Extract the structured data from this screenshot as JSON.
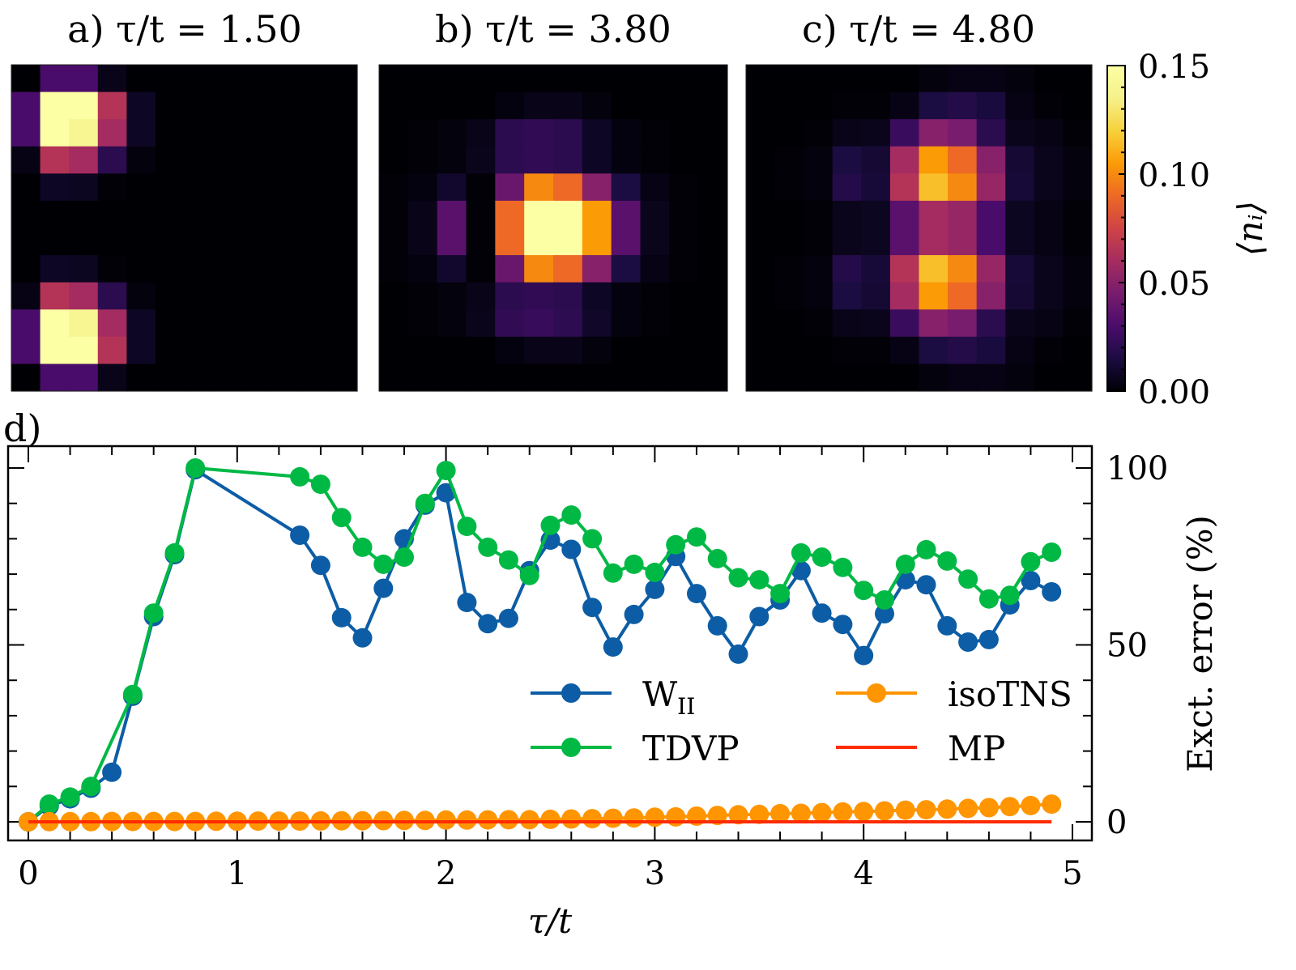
{
  "chart_data": [
    {
      "type": "heatmap",
      "panel": "a",
      "title": "a) τ/t = 1.50",
      "colormap": "inferno",
      "vmin": 0.0,
      "vmax": 0.15,
      "rows": 12,
      "cols": 12,
      "values": [
        [
          0,
          0.03,
          0.03,
          0.005,
          0,
          0,
          0,
          0,
          0,
          0,
          0,
          0
        ],
        [
          0.03,
          0.15,
          0.15,
          0.065,
          0.008,
          0,
          0,
          0,
          0,
          0,
          0,
          0
        ],
        [
          0.03,
          0.15,
          0.14,
          0.06,
          0.008,
          0,
          0,
          0,
          0,
          0,
          0,
          0
        ],
        [
          0.004,
          0.065,
          0.06,
          0.02,
          0.002,
          0,
          0,
          0,
          0,
          0,
          0,
          0
        ],
        [
          0,
          0.008,
          0.007,
          0.001,
          0,
          0,
          0,
          0,
          0,
          0,
          0,
          0
        ],
        [
          0,
          0,
          0,
          0,
          0,
          0,
          0,
          0,
          0,
          0,
          0,
          0
        ],
        [
          0,
          0,
          0,
          0,
          0,
          0,
          0,
          0,
          0,
          0,
          0,
          0
        ],
        [
          0,
          0.008,
          0.007,
          0.001,
          0,
          0,
          0,
          0,
          0,
          0,
          0,
          0
        ],
        [
          0.004,
          0.065,
          0.06,
          0.02,
          0.002,
          0,
          0,
          0,
          0,
          0,
          0,
          0
        ],
        [
          0.03,
          0.15,
          0.14,
          0.06,
          0.008,
          0,
          0,
          0,
          0,
          0,
          0,
          0
        ],
        [
          0.03,
          0.15,
          0.15,
          0.065,
          0.008,
          0,
          0,
          0,
          0,
          0,
          0,
          0
        ],
        [
          0,
          0.03,
          0.03,
          0.005,
          0,
          0,
          0,
          0,
          0,
          0,
          0,
          0
        ]
      ]
    },
    {
      "type": "heatmap",
      "panel": "b",
      "title": "b) τ/t = 3.80",
      "colormap": "inferno",
      "vmin": 0.0,
      "vmax": 0.15,
      "rows": 12,
      "cols": 12,
      "values": [
        [
          0,
          0,
          0,
          0,
          0,
          0,
          0,
          0,
          0,
          0,
          0,
          0
        ],
        [
          0,
          0,
          0,
          0,
          0.003,
          0.005,
          0.005,
          0.002,
          0,
          0,
          0,
          0
        ],
        [
          0,
          0.001,
          0.002,
          0.005,
          0.02,
          0.022,
          0.02,
          0.008,
          0.003,
          0.001,
          0,
          0
        ],
        [
          0,
          0.001,
          0.002,
          0.006,
          0.02,
          0.022,
          0.02,
          0.008,
          0.003,
          0.001,
          0,
          0
        ],
        [
          0.001,
          0.003,
          0.01,
          0.001,
          0.04,
          0.1,
          0.09,
          0.05,
          0.015,
          0.004,
          0.001,
          0
        ],
        [
          0.001,
          0.005,
          0.035,
          0.001,
          0.09,
          0.15,
          0.15,
          0.105,
          0.035,
          0.006,
          0.001,
          0
        ],
        [
          0.001,
          0.005,
          0.035,
          0.001,
          0.09,
          0.15,
          0.15,
          0.105,
          0.035,
          0.006,
          0.001,
          0
        ],
        [
          0.001,
          0.003,
          0.01,
          0.001,
          0.04,
          0.1,
          0.09,
          0.05,
          0.015,
          0.004,
          0.001,
          0
        ],
        [
          0,
          0.001,
          0.002,
          0.005,
          0.02,
          0.022,
          0.02,
          0.008,
          0.003,
          0.001,
          0,
          0
        ],
        [
          0,
          0.001,
          0.002,
          0.006,
          0.022,
          0.024,
          0.021,
          0.009,
          0.003,
          0.001,
          0,
          0
        ],
        [
          0,
          0,
          0,
          0,
          0.003,
          0.005,
          0.005,
          0.002,
          0,
          0,
          0,
          0
        ],
        [
          0,
          0,
          0,
          0,
          0,
          0,
          0,
          0,
          0,
          0,
          0,
          0
        ]
      ]
    },
    {
      "type": "heatmap",
      "panel": "c",
      "title": "c) τ/t = 4.80",
      "colormap": "inferno",
      "vmin": 0.0,
      "vmax": 0.15,
      "rows": 12,
      "cols": 12,
      "values": [
        [
          0,
          0,
          0,
          0,
          0,
          0,
          0.002,
          0.004,
          0.004,
          0.002,
          0,
          0
        ],
        [
          0,
          0,
          0,
          0.001,
          0.001,
          0.004,
          0.015,
          0.018,
          0.014,
          0.004,
          0.001,
          0
        ],
        [
          0,
          0,
          0.001,
          0.005,
          0.006,
          0.025,
          0.05,
          0.045,
          0.02,
          0.006,
          0.004,
          0.001
        ],
        [
          0,
          0.001,
          0.002,
          0.015,
          0.012,
          0.06,
          0.105,
          0.09,
          0.05,
          0.012,
          0.006,
          0.002
        ],
        [
          0,
          0.001,
          0.002,
          0.018,
          0.013,
          0.065,
          0.115,
          0.1,
          0.055,
          0.013,
          0.006,
          0.002
        ],
        [
          0,
          0,
          0.001,
          0.006,
          0.007,
          0.035,
          0.06,
          0.055,
          0.03,
          0.007,
          0.004,
          0.001
        ],
        [
          0,
          0,
          0.001,
          0.006,
          0.007,
          0.035,
          0.06,
          0.055,
          0.03,
          0.007,
          0.004,
          0.001
        ],
        [
          0,
          0.001,
          0.002,
          0.018,
          0.013,
          0.065,
          0.115,
          0.1,
          0.055,
          0.013,
          0.006,
          0.002
        ],
        [
          0,
          0.001,
          0.002,
          0.015,
          0.012,
          0.06,
          0.105,
          0.09,
          0.05,
          0.012,
          0.006,
          0.002
        ],
        [
          0,
          0,
          0.001,
          0.005,
          0.006,
          0.025,
          0.05,
          0.045,
          0.02,
          0.006,
          0.004,
          0.001
        ],
        [
          0,
          0,
          0,
          0.001,
          0.001,
          0.004,
          0.015,
          0.018,
          0.014,
          0.004,
          0.001,
          0
        ],
        [
          0,
          0,
          0,
          0,
          0,
          0,
          0.002,
          0.004,
          0.004,
          0.002,
          0,
          0
        ]
      ]
    },
    {
      "type": "colorbar",
      "colormap": "inferno",
      "label": "⟨nᵢ⟩",
      "range": [
        0.0,
        0.15
      ],
      "tick_labels": [
        "0.00",
        "0.05",
        "0.10",
        "0.15"
      ],
      "ticks": [
        0.0,
        0.05,
        0.1,
        0.15
      ],
      "minor_step": 0.01
    },
    {
      "type": "line",
      "panel": "d",
      "panel_label": "d)",
      "xlabel": "τ/t",
      "ylabel": "Exct. error (%)",
      "ylabel_side": "right",
      "xlim": [
        -0.1,
        5.1
      ],
      "ylim": [
        -5,
        105
      ],
      "xticks": [
        0,
        1,
        2,
        3,
        4,
        5
      ],
      "xtick_labels": [
        "0",
        "1",
        "2",
        "3",
        "4",
        "5"
      ],
      "yticks": [
        0,
        50,
        100
      ],
      "ytick_labels": [
        "0",
        "50",
        "100"
      ],
      "x_minor_step": 0.2,
      "y_minor_step": 10,
      "grid": false,
      "legend": {
        "placement": "lower-right",
        "columns": 2
      },
      "series": [
        {
          "name": "W_II",
          "legend_main": "W",
          "legend_sub": "II",
          "color": "#0C5DA5",
          "marker": "circle",
          "x": [
            0,
            0.1,
            0.2,
            0.3,
            0.4,
            0.5,
            0.6,
            0.7,
            0.8,
            1.3,
            1.4,
            1.5,
            1.6,
            1.7,
            1.8,
            1.9,
            2.0,
            2.1,
            2.2,
            2.3,
            2.4,
            2.5,
            2.6,
            2.7,
            2.8,
            2.9,
            3.0,
            3.1,
            3.2,
            3.3,
            3.4,
            3.5,
            3.6,
            3.7,
            3.8,
            3.9,
            4.0,
            4.1,
            4.2,
            4.3,
            4.4,
            4.5,
            4.6,
            4.7,
            4.8,
            4.9
          ],
          "y": [
            0,
            4.5,
            6.5,
            9.5,
            14,
            35.5,
            58,
            75.5,
            99.5,
            81,
            72.5,
            57.7,
            52,
            66,
            80,
            89.5,
            93,
            62,
            56,
            57.5,
            71,
            79.6,
            77,
            60.6,
            49.4,
            58.6,
            65.7,
            75,
            64.5,
            55.4,
            47.4,
            58,
            62.7,
            71,
            59,
            55.8,
            47,
            58.8,
            68.4,
            67,
            55.4,
            50.8,
            51.5,
            61.3,
            68.2,
            65
          ]
        },
        {
          "name": "TDVP",
          "color": "#00B945",
          "marker": "circle",
          "x": [
            0,
            0.1,
            0.2,
            0.3,
            0.5,
            0.6,
            0.7,
            0.8,
            1.3,
            1.4,
            1.5,
            1.6,
            1.7,
            1.8,
            1.9,
            2.0,
            2.1,
            2.2,
            2.3,
            2.4,
            2.5,
            2.6,
            2.7,
            2.8,
            2.9,
            3.0,
            3.1,
            3.2,
            3.3,
            3.4,
            3.5,
            3.6,
            3.7,
            3.8,
            3.9,
            4.0,
            4.1,
            4.2,
            4.3,
            4.4,
            4.5,
            4.6,
            4.7,
            4.8,
            4.9
          ],
          "y": [
            0,
            5,
            7,
            10,
            36,
            59,
            76,
            100,
            97.5,
            95.4,
            86,
            77.6,
            72.8,
            74.8,
            90,
            99.3,
            83.5,
            77.6,
            74,
            69.6,
            83.8,
            86.7,
            80,
            70.3,
            72.8,
            70.5,
            78.3,
            80.5,
            74.4,
            69,
            68.4,
            64.5,
            76,
            74.8,
            71.9,
            65.4,
            62.7,
            72.8,
            76.9,
            73.7,
            68.6,
            63,
            64,
            73.5,
            76.2
          ]
        },
        {
          "name": "isoTNS",
          "color": "#FF9500",
          "marker": "circle",
          "x": [
            0,
            0.1,
            0.2,
            0.3,
            0.4,
            0.5,
            0.6,
            0.7,
            0.8,
            0.9,
            1.0,
            1.1,
            1.2,
            1.3,
            1.4,
            1.5,
            1.6,
            1.7,
            1.8,
            1.9,
            2.0,
            2.1,
            2.2,
            2.3,
            2.4,
            2.5,
            2.6,
            2.7,
            2.8,
            2.9,
            3.0,
            3.1,
            3.2,
            3.3,
            3.4,
            3.5,
            3.6,
            3.7,
            3.8,
            3.9,
            4.0,
            4.1,
            4.2,
            4.3,
            4.4,
            4.5,
            4.6,
            4.7,
            4.8,
            4.9
          ],
          "y": [
            0,
            0.05,
            0.05,
            0.05,
            0.1,
            0.1,
            0.1,
            0.1,
            0.1,
            0.15,
            0.15,
            0.2,
            0.2,
            0.2,
            0.25,
            0.3,
            0.3,
            0.35,
            0.4,
            0.4,
            0.5,
            0.5,
            0.55,
            0.6,
            0.6,
            0.7,
            0.8,
            0.9,
            1.0,
            1.1,
            1.3,
            1.4,
            1.6,
            1.8,
            2.0,
            2.1,
            2.3,
            2.4,
            2.6,
            2.8,
            2.9,
            3.1,
            3.3,
            3.4,
            3.6,
            3.8,
            4.0,
            4.3,
            4.6,
            5.0
          ]
        },
        {
          "name": "MP",
          "color": "#FF2C00",
          "marker": "none",
          "x": [
            0,
            4.9
          ],
          "y": [
            0,
            0
          ]
        }
      ]
    }
  ]
}
